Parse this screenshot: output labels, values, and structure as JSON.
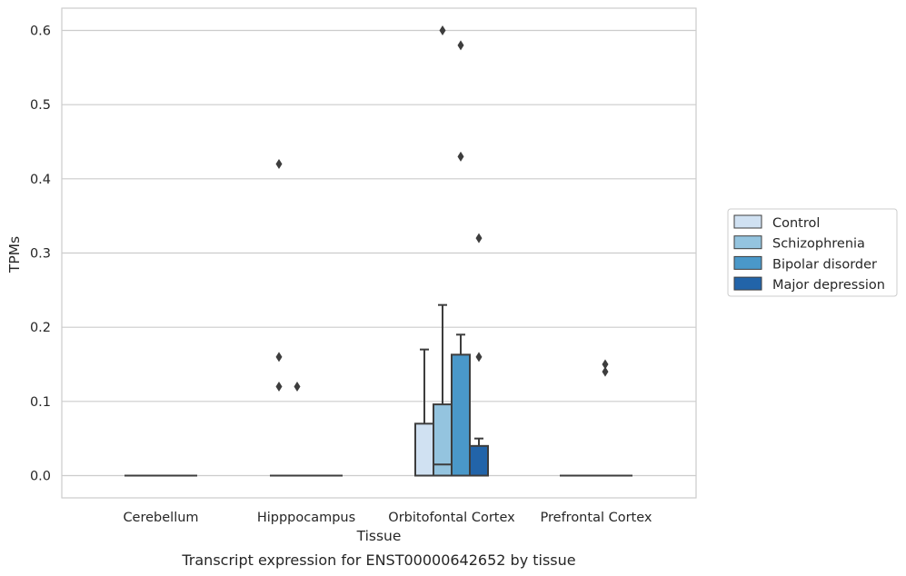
{
  "chart_data": {
    "type": "box",
    "title": "",
    "caption": "Transcript expression for ENST00000642652 by tissue",
    "xlabel": "Tissue",
    "ylabel": "TPMs",
    "ylim": [
      -0.03,
      0.63
    ],
    "yticks": [
      0.0,
      0.1,
      0.2,
      0.3,
      0.4,
      0.5,
      0.6
    ],
    "ytick_labels": [
      "0.0",
      "0.1",
      "0.2",
      "0.3",
      "0.4",
      "0.5",
      "0.6"
    ],
    "grid": true,
    "legend_position": "right",
    "categories": [
      "Cerebellum",
      "Hipppocampus",
      "Orbitofontal Cortex",
      "Prefrontal Cortex"
    ],
    "series": [
      {
        "name": "Control",
        "color": "#d0e1f2",
        "boxes": [
          {
            "q1": 0,
            "median": 0,
            "q3": 0,
            "whislo": 0,
            "whishi": 0,
            "fliers": []
          },
          {
            "q1": 0,
            "median": 0,
            "q3": 0,
            "whislo": 0,
            "whishi": 0,
            "fliers": [
              0.42,
              0.16,
              0.12
            ]
          },
          {
            "q1": 0,
            "median": 0,
            "q3": 0.07,
            "whislo": 0,
            "whishi": 0.17,
            "fliers": []
          },
          {
            "q1": 0,
            "median": 0,
            "q3": 0,
            "whislo": 0,
            "whishi": 0,
            "fliers": []
          }
        ]
      },
      {
        "name": "Schizophrenia",
        "color": "#94c4df",
        "boxes": [
          {
            "q1": 0,
            "median": 0,
            "q3": 0,
            "whislo": 0,
            "whishi": 0,
            "fliers": []
          },
          {
            "q1": 0,
            "median": 0,
            "q3": 0,
            "whislo": 0,
            "whishi": 0,
            "fliers": [
              0.12
            ]
          },
          {
            "q1": 0,
            "median": 0.015,
            "q3": 0.096,
            "whislo": 0,
            "whishi": 0.23,
            "fliers": [
              0.6
            ]
          },
          {
            "q1": 0,
            "median": 0,
            "q3": 0,
            "whislo": 0,
            "whishi": 0,
            "fliers": []
          }
        ]
      },
      {
        "name": "Bipolar disorder",
        "color": "#4a98c9",
        "boxes": [
          {
            "q1": 0,
            "median": 0,
            "q3": 0,
            "whislo": 0,
            "whishi": 0,
            "fliers": []
          },
          {
            "q1": 0,
            "median": 0,
            "q3": 0,
            "whislo": 0,
            "whishi": 0,
            "fliers": []
          },
          {
            "q1": 0,
            "median": 0,
            "q3": 0.163,
            "whislo": 0,
            "whishi": 0.19,
            "fliers": [
              0.58,
              0.43
            ]
          },
          {
            "q1": 0,
            "median": 0,
            "q3": 0,
            "whislo": 0,
            "whishi": 0,
            "fliers": [
              0.15,
              0.14
            ]
          }
        ]
      },
      {
        "name": "Major depression",
        "color": "#2264a9",
        "boxes": [
          {
            "q1": 0,
            "median": 0,
            "q3": 0,
            "whislo": 0,
            "whishi": 0,
            "fliers": []
          },
          {
            "q1": 0,
            "median": 0,
            "q3": 0,
            "whislo": 0,
            "whishi": 0,
            "fliers": []
          },
          {
            "q1": 0,
            "median": 0,
            "q3": 0.04,
            "whislo": 0,
            "whishi": 0.05,
            "fliers": [
              0.32,
              0.16
            ]
          },
          {
            "q1": 0,
            "median": 0,
            "q3": 0,
            "whislo": 0,
            "whishi": 0,
            "fliers": []
          }
        ]
      }
    ]
  }
}
